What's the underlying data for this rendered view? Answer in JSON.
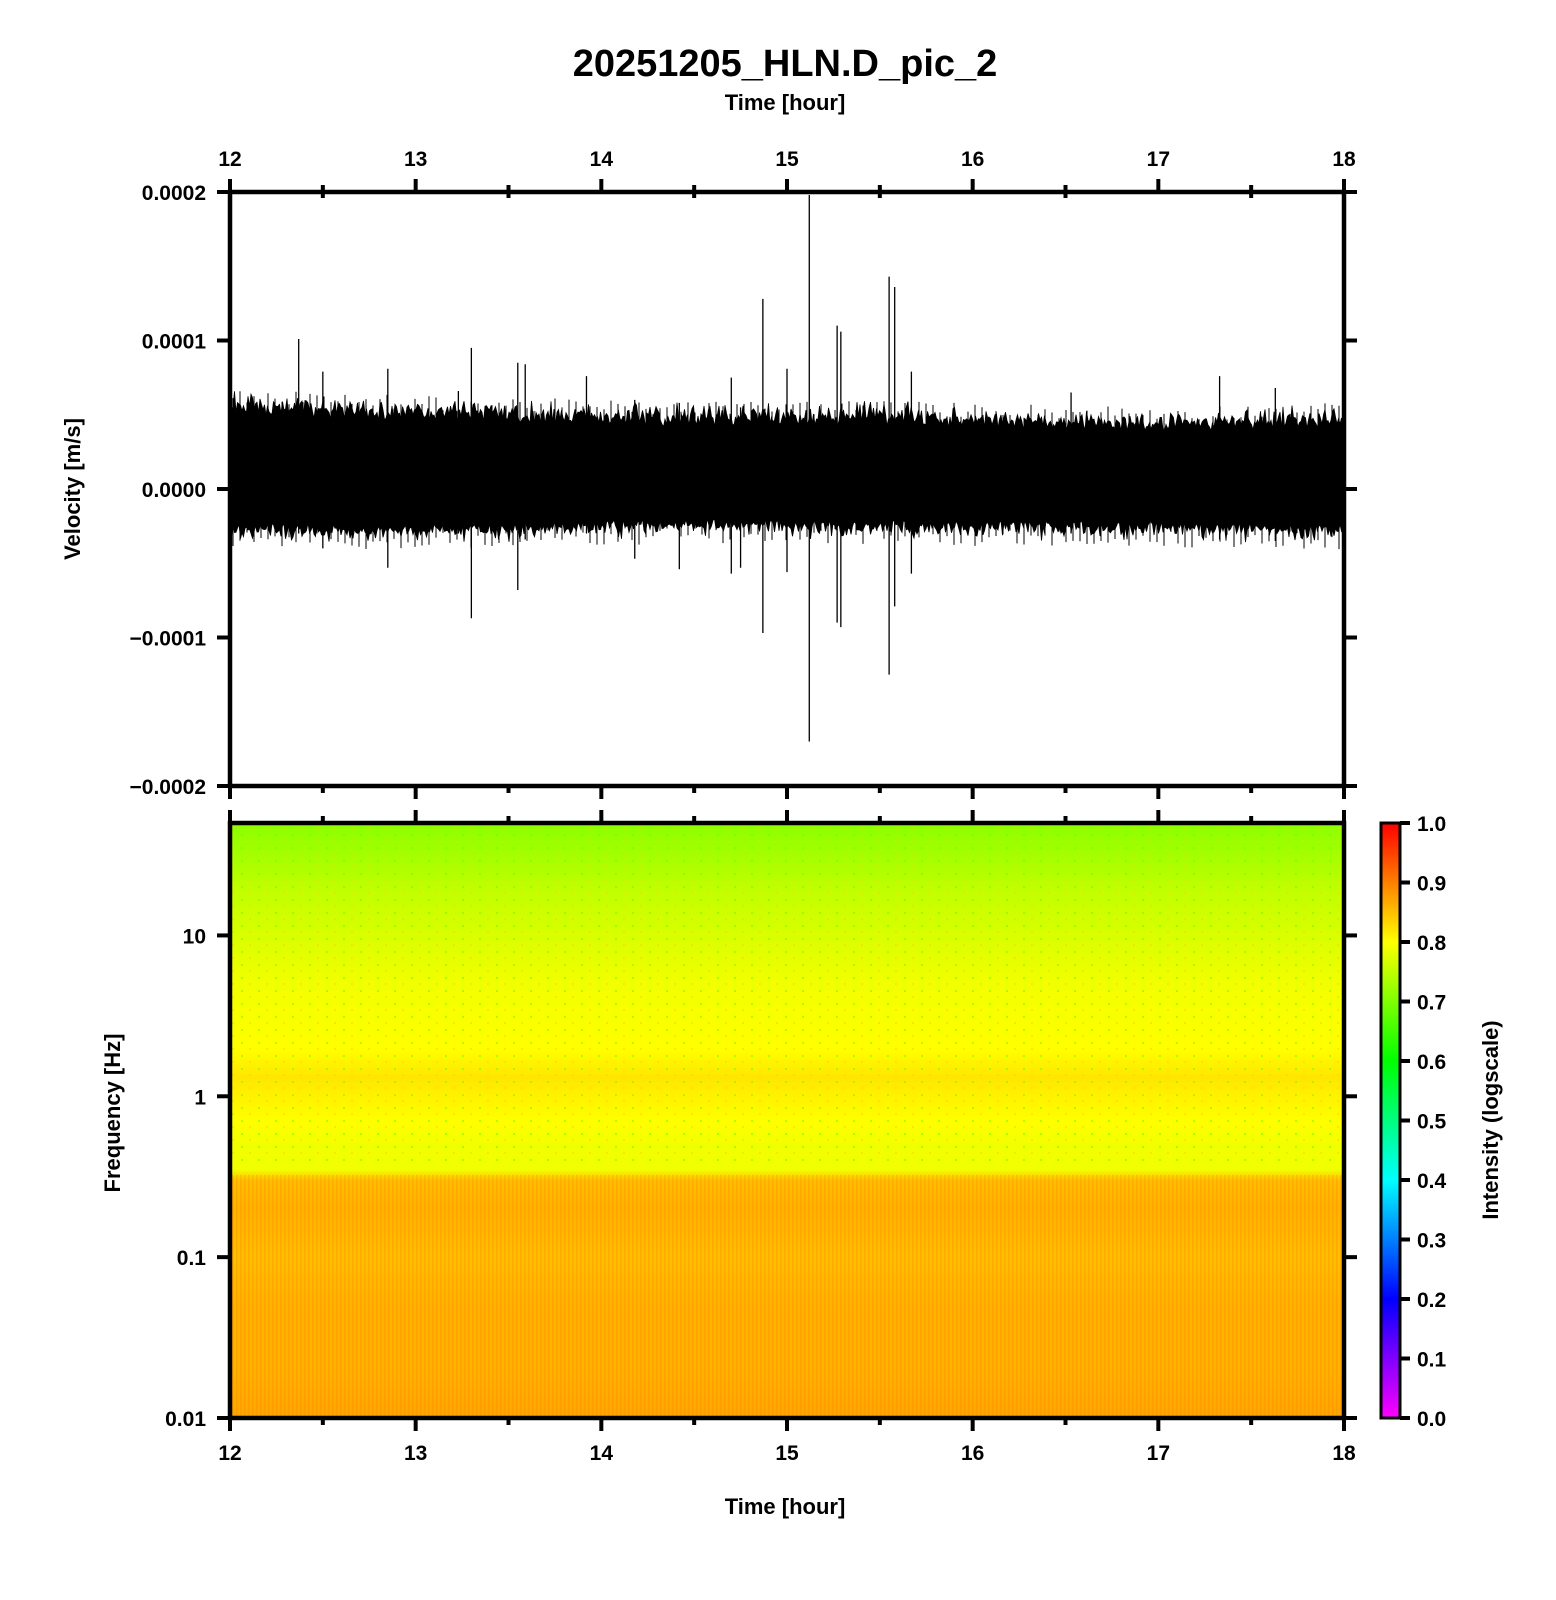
{
  "title": "20251205_HLN.D_pic_2",
  "chart_data": [
    {
      "type": "line",
      "panel": "waveform",
      "xlabel": "Time [hour]",
      "ylabel": "Velocity [m/s]",
      "xlim": [
        12,
        18
      ],
      "ylim": [
        -0.0002,
        0.0002
      ],
      "x_ticks": [
        "12",
        "13",
        "14",
        "15",
        "16",
        "17",
        "18"
      ],
      "y_ticks": [
        "−0.0002",
        "−0.0001",
        "0.0000",
        "0.0001",
        "0.0002"
      ],
      "y_tick_values": [
        -0.0002,
        -0.0001,
        0.0,
        0.0001,
        0.0002
      ],
      "noise_band": {
        "x": [
          12.0,
          12.5,
          13.0,
          13.5,
          14.0,
          14.5,
          15.0,
          15.5,
          16.0,
          16.5,
          17.0,
          17.5,
          18.0
        ],
        "upper": [
          5.8e-05,
          5.5e-05,
          5.3e-05,
          5.2e-05,
          5e-05,
          4.9e-05,
          5e-05,
          5e-05,
          4.8e-05,
          4.7e-05,
          4.6e-05,
          4.7e-05,
          4.8e-05
        ],
        "lower": [
          -2.8e-05,
          -2.9e-05,
          -2.9e-05,
          -2.8e-05,
          -2.6e-05,
          -2.5e-05,
          -2.6e-05,
          -2.6e-05,
          -2.7e-05,
          -2.7e-05,
          -2.7e-05,
          -2.8e-05,
          -2.9e-05
        ]
      },
      "spikes": [
        {
          "x": 12.37,
          "max": 0.000101,
          "min": -3e-05
        },
        {
          "x": 12.5,
          "max": 7.9e-05,
          "min": -4e-05
        },
        {
          "x": 12.85,
          "max": 8.1e-05,
          "min": -5.3e-05
        },
        {
          "x": 13.23,
          "max": 6.6e-05,
          "min": -3e-05
        },
        {
          "x": 13.3,
          "max": 9.5e-05,
          "min": -8.7e-05
        },
        {
          "x": 13.55,
          "max": 8.5e-05,
          "min": -6.8e-05
        },
        {
          "x": 13.59,
          "max": 8.4e-05,
          "min": -3.4e-05
        },
        {
          "x": 13.92,
          "max": 7.6e-05,
          "min": -3e-05
        },
        {
          "x": 14.18,
          "max": 6e-05,
          "min": -4.7e-05
        },
        {
          "x": 14.42,
          "max": 5.8e-05,
          "min": -5.4e-05
        },
        {
          "x": 14.7,
          "max": 7.5e-05,
          "min": -5.7e-05
        },
        {
          "x": 14.75,
          "max": 5.5e-05,
          "min": -5.3e-05
        },
        {
          "x": 14.87,
          "max": 0.000128,
          "min": -9.7e-05
        },
        {
          "x": 15.0,
          "max": 8.1e-05,
          "min": -5.6e-05
        },
        {
          "x": 15.12,
          "max": 0.000198,
          "min": -0.00017
        },
        {
          "x": 15.27,
          "max": 0.00011,
          "min": -9e-05
        },
        {
          "x": 15.29,
          "max": 0.000106,
          "min": -9.3e-05
        },
        {
          "x": 15.55,
          "max": 0.000143,
          "min": -0.000125
        },
        {
          "x": 15.58,
          "max": 0.000136,
          "min": -7.9e-05
        },
        {
          "x": 15.67,
          "max": 7.9e-05,
          "min": -5.7e-05
        },
        {
          "x": 16.53,
          "max": 6.5e-05,
          "min": -3e-05
        },
        {
          "x": 17.33,
          "max": 7.6e-05,
          "min": -3.4e-05
        },
        {
          "x": 17.63,
          "max": 6.8e-05,
          "min": -3.5e-05
        }
      ]
    },
    {
      "type": "heatmap",
      "panel": "spectrogram",
      "xlabel": "Time [hour]",
      "ylabel": "Frequency [Hz]",
      "xlim": [
        12,
        18
      ],
      "ylim": [
        0.01,
        50
      ],
      "yscale": "log",
      "x_ticks": [
        "12",
        "13",
        "14",
        "15",
        "16",
        "17",
        "18"
      ],
      "y_ticks": [
        "0.01",
        "0.1",
        "1",
        "10"
      ],
      "y_tick_values": [
        0.01,
        0.1,
        1,
        10
      ],
      "intensity_profile": {
        "frequency": [
          50,
          30,
          20,
          10,
          5,
          2,
          1.3,
          1,
          0.7,
          0.5,
          0.35,
          0.3,
          0.2,
          0.1,
          0.05,
          0.02,
          0.01
        ],
        "intensity": [
          0.71,
          0.73,
          0.75,
          0.77,
          0.79,
          0.8,
          0.82,
          0.81,
          0.8,
          0.79,
          0.79,
          0.85,
          0.86,
          0.85,
          0.86,
          0.86,
          0.87
        ]
      }
    }
  ],
  "colorbar": {
    "label": "Intensity (logscale)",
    "range": [
      0.0,
      1.0
    ],
    "ticks": [
      "0.0",
      "0.1",
      "0.2",
      "0.3",
      "0.4",
      "0.5",
      "0.6",
      "0.7",
      "0.8",
      "0.9",
      "1.0"
    ],
    "colors": [
      "#ff00ff",
      "#0000ff",
      "#00ffff",
      "#00ff00",
      "#ffff00",
      "#ff0000"
    ]
  },
  "colors": {
    "trace": "#000000",
    "frame": "#000000"
  }
}
